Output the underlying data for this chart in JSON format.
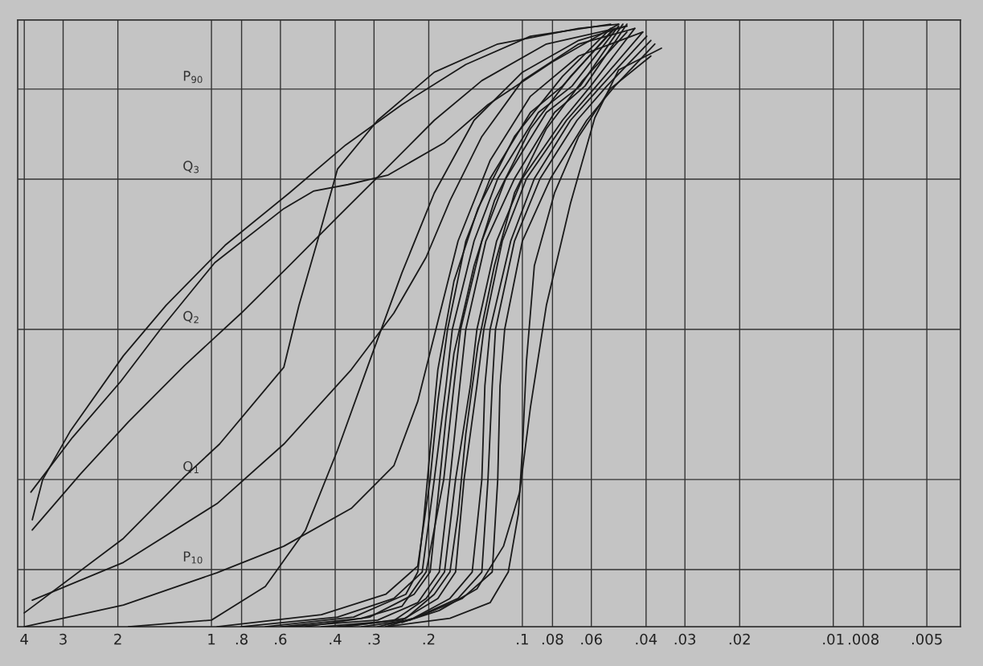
{
  "chart_data": {
    "type": "line",
    "color": "#1a1a1a",
    "log": "x",
    "grid": "x",
    "tick_labels": "x",
    "marker": "none",
    "line_style": "solid",
    "xlim": [
      4.2,
      0.0039
    ],
    "ylim": [
      0.5,
      101.5
    ],
    "xticks": [
      4,
      3,
      2,
      1,
      {
        "value": 0.8,
        "label": ".8"
      },
      {
        "value": 0.6,
        "label": ".6"
      },
      {
        "value": 0.4,
        "label": ".4"
      },
      {
        "value": 0.3,
        "label": ".3"
      },
      {
        "value": 0.2,
        "label": ".2"
      },
      {
        "value": 0.1,
        "label": ".1"
      },
      {
        "value": 0.08,
        "label": ".08"
      },
      {
        "value": 0.06,
        "label": ".06"
      },
      {
        "value": 0.04,
        "label": ".04"
      },
      {
        "value": 0.03,
        "label": ".03"
      },
      {
        "value": 0.02,
        "label": ".02"
      },
      {
        "value": 0.01,
        "label": ".01"
      },
      {
        "value": 0.008,
        "label": ".008"
      },
      {
        "value": 0.005,
        "label": ".005"
      }
    ],
    "ref_lines": [
      {
        "axis": "y",
        "value": 10,
        "label": "P$_{10}$"
      },
      {
        "axis": "y",
        "value": 25,
        "label": "Q$_{1}$"
      },
      {
        "axis": "y",
        "value": 50,
        "label": "Q$_{2}$"
      },
      {
        "axis": "y",
        "value": 75,
        "label": "Q$_{3}$"
      },
      {
        "axis": "y",
        "value": 90,
        "label": "P$_{90}$"
      }
    ],
    "series": [
      {
        "x": [
          3.81,
          2.8,
          1.96,
          1.46,
          0.976,
          0.585,
          0.47,
          0.364,
          0.27,
          0.178,
          0.129,
          0.0802,
          0.0542,
          0.049
        ],
        "values": [
          22.9,
          32.0,
          41.3,
          50.0,
          61.1,
          70.1,
          73.0,
          74.1,
          75.7,
          81.1,
          87.4,
          94.5,
          99.5,
          100.8
        ]
      },
      {
        "x": [
          3.77,
          3.49,
          2.85,
          1.92,
          1.4,
          0.904,
          0.562,
          0.37,
          0.244,
          0.152,
          0.0942,
          0.052
        ],
        "values": [
          18.3,
          25.0,
          33.0,
          45.6,
          54.0,
          64.0,
          72.7,
          80.7,
          87.4,
          94.1,
          98.8,
          100.8
        ]
      },
      {
        "x": [
          3.77,
          2.64,
          1.85,
          1.22,
          0.802,
          0.562,
          0.393,
          0.275,
          0.192,
          0.135,
          0.0837,
          0.0461
        ],
        "values": [
          16.6,
          25.9,
          34.6,
          44.0,
          52.7,
          60.6,
          68.7,
          76.7,
          84.8,
          91.4,
          97.5,
          100.5
        ]
      },
      {
        "x": [
          4.0,
          1.92,
          1.22,
          0.942,
          0.585,
          0.523,
          0.456,
          0.393,
          0.292,
          0.192,
          0.12,
          0.0659,
          0.049
        ],
        "values": [
          2.8,
          15.2,
          25.5,
          30.9,
          43.7,
          54.0,
          64.7,
          76.7,
          84.8,
          92.8,
          97.5,
          100.1,
          100.8
        ]
      },
      {
        "x": [
          3.77,
          1.92,
          0.959,
          0.585,
          0.355,
          0.259,
          0.204,
          0.171,
          0.135,
          0.1,
          0.0659,
          0.0435
        ],
        "values": [
          4.9,
          11.2,
          21.0,
          30.9,
          43.3,
          52.7,
          62.0,
          71.4,
          82.1,
          91.4,
          97.5,
          100.1
        ]
      },
      {
        "x": [
          4.0,
          1.92,
          0.959,
          0.585,
          0.355,
          0.259,
          0.217,
          0.187,
          0.161,
          0.127,
          0.0942,
          0.0659,
          0.041
        ],
        "values": [
          0.5,
          4.1,
          9.5,
          13.9,
          20.2,
          27.3,
          38.0,
          51.3,
          64.7,
          78.1,
          88.8,
          95.5,
          99.5
        ]
      },
      {
        "x": [
          1.85,
          1.0,
          0.671,
          0.498,
          0.393,
          0.31,
          0.244,
          0.192,
          0.143,
          0.1,
          0.0659,
          0.0461
        ],
        "values": [
          0.5,
          1.6,
          7.2,
          16.6,
          29.9,
          44.7,
          59.4,
          72.7,
          84.8,
          92.8,
          98.1,
          100.5
        ]
      },
      {
        "x": [
          0.959,
          0.443,
          0.275,
          0.217,
          0.198,
          0.187,
          0.174,
          0.152,
          0.127,
          0.0942,
          0.0743,
          0.052
        ],
        "values": [
          0.5,
          2.5,
          5.9,
          10.6,
          25.0,
          38.0,
          50.0,
          64.7,
          75.1,
          86.1,
          90.5,
          99.5
        ]
      },
      {
        "x": [
          0.802,
          0.393,
          0.259,
          0.21,
          0.192,
          0.176,
          0.168,
          0.143,
          0.12,
          0.0888,
          0.0692,
          0.049
        ],
        "values": [
          0.5,
          2.1,
          5.2,
          9.6,
          25.0,
          40.6,
          50.0,
          64.7,
          75.1,
          86.1,
          90.5,
          100.5
        ]
      },
      {
        "x": [
          0.596,
          0.329,
          0.244,
          0.204,
          0.179,
          0.166,
          0.158,
          0.135,
          0.113,
          0.0837,
          0.0652,
          0.0475
        ],
        "values": [
          0.5,
          1.9,
          3.9,
          9.6,
          25.0,
          40.6,
          50.0,
          64.7,
          75.1,
          86.1,
          90.5,
          100.8
        ]
      },
      {
        "x": [
          0.562,
          0.292,
          0.217,
          0.185,
          0.171,
          0.159,
          0.152,
          0.131,
          0.106,
          0.0788,
          0.0629,
          0.0461
        ],
        "values": [
          0.5,
          1.6,
          4.5,
          9.6,
          25.0,
          40.6,
          50.0,
          64.7,
          75.1,
          86.1,
          90.5,
          100.8
        ]
      },
      {
        "x": [
          0.443,
          0.259,
          0.204,
          0.178,
          0.164,
          0.147,
          0.14,
          0.121,
          0.1,
          0.0743,
          0.0603,
          0.0435
        ],
        "values": [
          0.5,
          1.5,
          5.2,
          9.6,
          25.0,
          40.6,
          50.0,
          64.7,
          75.1,
          84.8,
          90.5,
          100.1
        ]
      },
      {
        "x": [
          0.393,
          0.244,
          0.187,
          0.164,
          0.154,
          0.14,
          0.133,
          0.116,
          0.097,
          0.0721,
          0.0578,
          0.041
        ],
        "values": [
          0.5,
          1.6,
          5.2,
          9.6,
          25.0,
          40.6,
          50.0,
          64.7,
          75.1,
          84.8,
          90.5,
          99.5
        ]
      },
      {
        "x": [
          0.329,
          0.23,
          0.171,
          0.145,
          0.135,
          0.132,
          0.127,
          0.109,
          0.0915,
          0.07,
          0.0558,
          0.0398
        ],
        "values": [
          0.5,
          1.6,
          5.2,
          9.6,
          25.0,
          40.6,
          50.0,
          64.7,
          75.1,
          84.8,
          90.5,
          98.8
        ]
      },
      {
        "x": [
          0.292,
          0.223,
          0.161,
          0.135,
          0.129,
          0.125,
          0.122,
          0.106,
          0.0877,
          0.0667,
          0.0535,
          0.0386
        ],
        "values": [
          0.5,
          1.9,
          5.2,
          9.6,
          25.0,
          40.6,
          50.0,
          64.7,
          75.1,
          84.8,
          90.5,
          98.1
        ]
      },
      {
        "x": [
          0.275,
          0.217,
          0.156,
          0.125,
          0.12,
          0.118,
          0.114,
          0.1,
          0.0812,
          0.0621,
          0.0504,
          0.0375
        ],
        "values": [
          0.5,
          2.1,
          5.2,
          9.6,
          25.0,
          40.6,
          50.0,
          64.7,
          75.1,
          84.8,
          90.5,
          97.5
        ]
      },
      {
        "x": [
          0.244,
          0.185,
          0.14,
          0.115,
          0.102,
          0.0942,
          0.0837,
          0.07,
          0.0585,
          0.049,
          0.0357
        ],
        "values": [
          1.2,
          3.2,
          6.8,
          13.9,
          22.9,
          37.0,
          54.0,
          71.0,
          85.2,
          93.2,
          96.8
        ]
      },
      {
        "x": [
          0.37,
          0.237,
          0.192,
          0.171,
          0.161,
          0.152,
          0.139,
          0.123,
          0.106,
          0.0837,
          0.064,
          0.0461
        ],
        "values": [
          0.5,
          1.9,
          5.9,
          9.6,
          19.3,
          32.6,
          47.3,
          60.6,
          72.7,
          83.4,
          91.4,
          99.5
        ]
      },
      {
        "x": [
          0.498,
          0.31,
          0.223,
          0.198,
          0.187,
          0.176,
          0.166,
          0.143,
          0.123,
          0.0942,
          0.07,
          0.0504
        ],
        "values": [
          0.5,
          2.1,
          5.9,
          9.6,
          21.9,
          35.3,
          46.0,
          60.6,
          71.4,
          83.4,
          92.1,
          100.1
        ]
      },
      {
        "x": [
          0.671,
          0.349,
          0.237,
          0.217,
          0.208,
          0.198,
          0.187,
          0.166,
          0.139,
          0.106,
          0.0743,
          0.052
        ],
        "values": [
          0.5,
          2.1,
          5.9,
          9.6,
          17.9,
          29.9,
          43.3,
          58.0,
          70.1,
          82.1,
          92.1,
          100.1
        ]
      },
      {
        "x": [
          0.275,
          0.171,
          0.127,
          0.111,
          0.103,
          0.1,
          0.097,
          0.0915,
          0.0788,
          0.0659,
          0.052,
          0.0386
        ],
        "values": [
          0.5,
          1.9,
          4.5,
          9.6,
          19.3,
          29.9,
          44.7,
          60.6,
          72.7,
          82.1,
          90.1,
          95.5
        ]
      }
    ]
  }
}
